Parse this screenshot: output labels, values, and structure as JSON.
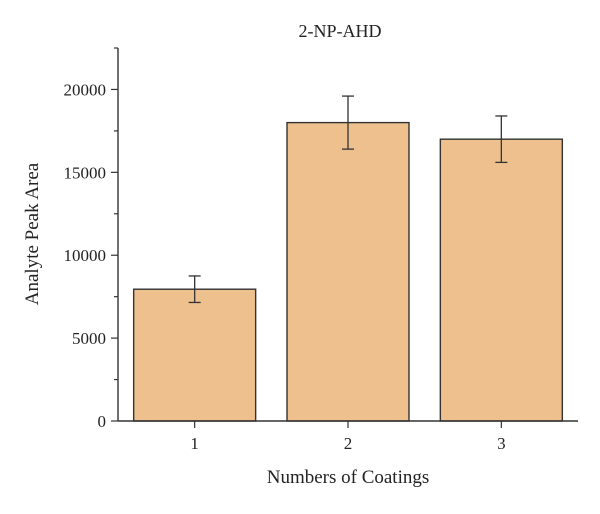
{
  "chart_data": {
    "type": "bar",
    "title": "2-NP-AHD",
    "xlabel": "Numbers of Coatings",
    "ylabel": "Analyte Peak Area",
    "categories": [
      "1",
      "2",
      "3"
    ],
    "values": [
      7950,
      18000,
      17000
    ],
    "errors": [
      800,
      1600,
      1400
    ],
    "ylim": [
      0,
      22500
    ],
    "yticks": [
      "0",
      "5000",
      "10000",
      "15000",
      "20000"
    ],
    "grid": false,
    "colors": {
      "bar_fill": "#EDC08E",
      "bar_stroke": "#333333",
      "axis": "#333333"
    }
  }
}
